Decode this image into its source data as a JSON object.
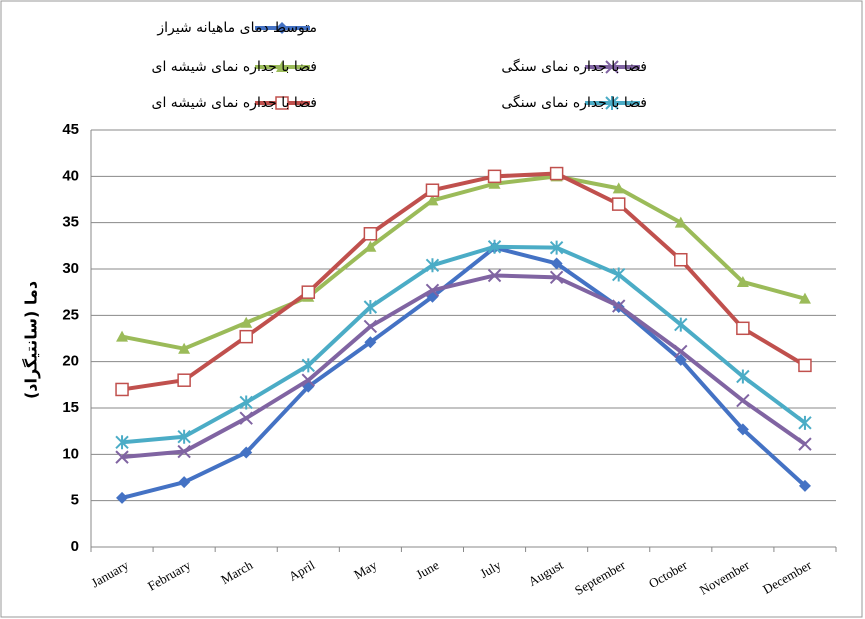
{
  "chart_data": {
    "type": "line",
    "y_label": "دما (سانتیگراد)",
    "categories": [
      "January",
      "February",
      "March",
      "April",
      "May",
      "June",
      "July",
      "August",
      "September",
      "October",
      "November",
      "December"
    ],
    "series": [
      {
        "name": "متوسط دمای ماهیانه شیراز",
        "color": "#4472c4",
        "marker": "diamond",
        "values": [
          5.3,
          7,
          10.2,
          17.3,
          22.1,
          27,
          32.3,
          30.6,
          25.9,
          20.2,
          12.7,
          6.6
        ]
      },
      {
        "name": "فضا با جداره نمای شیشه ای",
        "color": "#9bbb59",
        "marker": "triangle",
        "values": [
          22.7,
          21.4,
          24.2,
          27,
          32.4,
          37.4,
          39.2,
          40,
          38.7,
          35,
          28.6,
          26.8
        ]
      },
      {
        "name": "فضا با جداره نمای سنگی",
        "color": "#8064a2",
        "marker": "x",
        "values": [
          9.7,
          10.3,
          13.9,
          18,
          23.8,
          27.7,
          29.3,
          29.1,
          26,
          21.1,
          15.8,
          11.1
        ]
      },
      {
        "name": "فضا با جداره نمای شیشه ای",
        "color": "#c0504d",
        "marker": "square",
        "values": [
          17,
          18,
          22.7,
          27.5,
          33.8,
          38.5,
          40,
          40.3,
          37,
          31,
          23.6,
          19.6
        ]
      },
      {
        "name": "فضا با جداره نمای سنگی",
        "color": "#4bacc6",
        "marker": "star",
        "values": [
          11.3,
          11.9,
          15.6,
          19.6,
          25.9,
          30.4,
          32.4,
          32.3,
          29.4,
          24,
          18.4,
          13.4
        ]
      }
    ],
    "ylim": [
      0,
      45
    ],
    "yticks": [
      0,
      5,
      10,
      15,
      20,
      25,
      30,
      35,
      40,
      45
    ],
    "grid": true
  }
}
